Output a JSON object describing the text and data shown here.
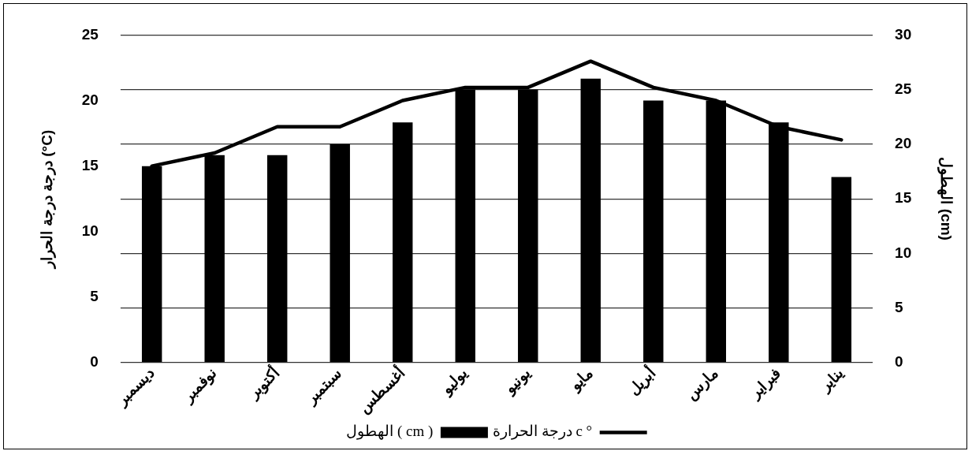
{
  "chart_data": {
    "type": "bar",
    "categories": [
      "ديسمبر",
      "نوفمبر",
      "أكتوبر",
      "سبتمبر",
      "أغسطس",
      "يوليو",
      "يونيو",
      "مايو",
      "أبريل",
      "مارس",
      "فبراير",
      "يناير"
    ],
    "ylabel": "درجة درجة الحرار (°C)",
    "y2label": "الهطول (cm)",
    "series": [
      {
        "name": "درجة الحرارة c °",
        "type": "line",
        "color": "#000000",
        "values": [
          15,
          16,
          18,
          18,
          20,
          21,
          21,
          23,
          21,
          20,
          18,
          17
        ]
      },
      {
        "name": "الهطول ( cm )",
        "axis": "y2",
        "color": "#000000",
        "values": [
          18,
          19,
          19,
          20,
          22,
          25,
          25,
          26,
          24,
          24,
          22,
          17
        ]
      }
    ],
    "ylim": [
      0,
      25
    ],
    "yticks": [
      0,
      5,
      10,
      15,
      20,
      25
    ],
    "y2lim": [
      0,
      30
    ],
    "y2ticks": [
      0,
      5,
      10,
      15,
      20,
      25,
      30
    ],
    "grid": "y",
    "legend": "bottom",
    "marker": "none",
    "line_style": "solid"
  }
}
